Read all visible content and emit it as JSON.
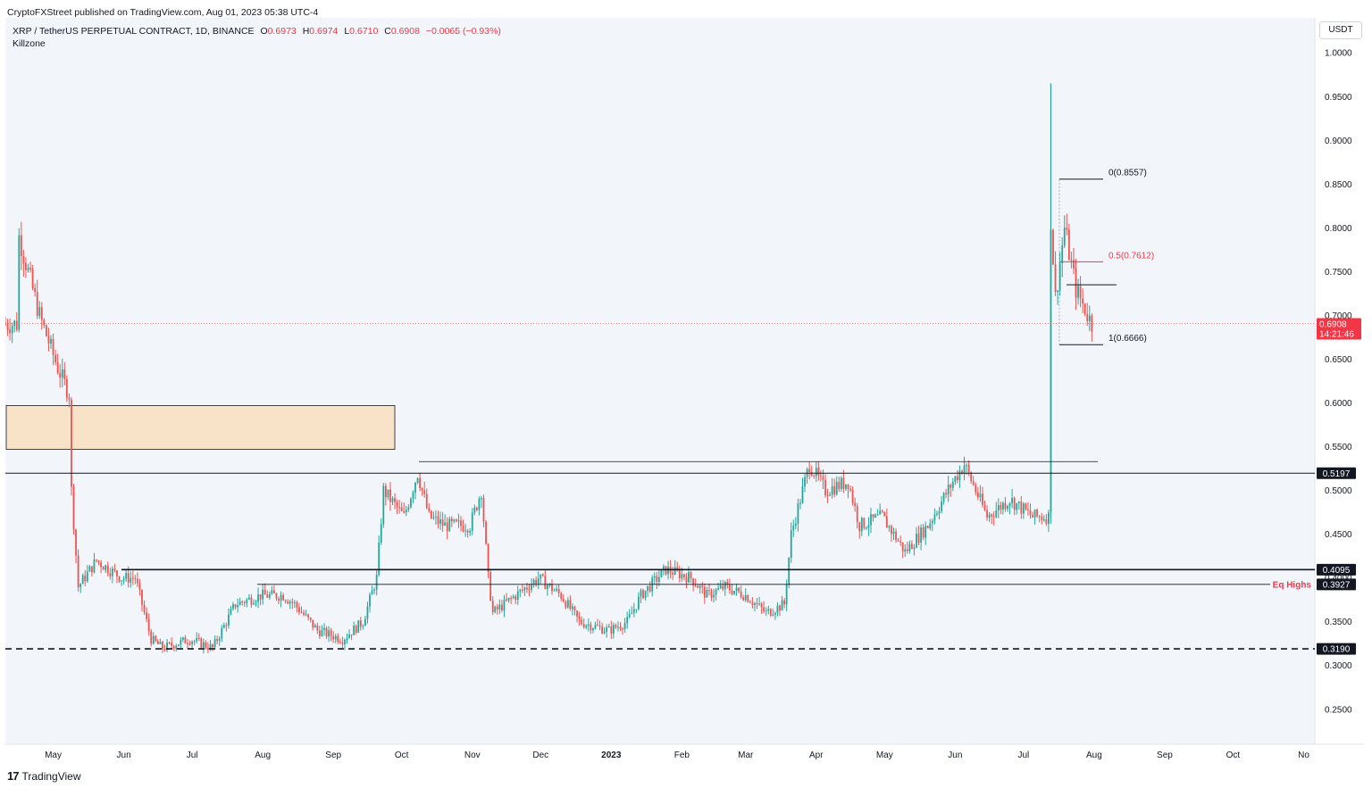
{
  "header": {
    "publisher": "CryptoFXStreet published on TradingView.com, Aug 01, 2023 05:38 UTC-4",
    "symbol": "XRP / TetherUS PERPETUAL CONTRACT, 1D, BINANCE",
    "o_label": "O",
    "o_value": "0.6973",
    "h_label": "H",
    "h_value": "0.6974",
    "l_label": "L",
    "l_value": "0.6710",
    "c_label": "C",
    "c_value": "0.6908",
    "change": "−0.0065 (−0.93%)",
    "indicator": "Killzone",
    "currency": "USDT"
  },
  "footer": {
    "logo_text": "TradingView"
  },
  "colors": {
    "up": "#26a69a",
    "down": "#ef5350",
    "background": "#f2f6fb",
    "zone_fill": "#f8e3c8",
    "accent_red": "#f23645"
  },
  "chart_data": {
    "type": "candlestick",
    "ylim": [
      0.21,
      1.04
    ],
    "y_ticks": [
      "1.0000",
      "0.9500",
      "0.9000",
      "0.8500",
      "0.8000",
      "0.7500",
      "0.7000",
      "0.6500",
      "0.6000",
      "0.5500",
      "0.5000",
      "0.4500",
      "0.4000",
      "0.3500",
      "0.3000",
      "0.2500"
    ],
    "x_labels": [
      "May",
      "Jun",
      "Jul",
      "Aug",
      "Sep",
      "Oct",
      "Nov",
      "Dec",
      "2023",
      "Feb",
      "Mar",
      "Apr",
      "May",
      "Jun",
      "Jul",
      "Aug",
      "Sep",
      "Oct",
      "No"
    ],
    "x_label_bold": "2023",
    "price_anchors": [
      [
        "2022-04-16",
        0.79
      ],
      [
        "2022-04-25",
        0.7
      ],
      [
        "2022-05-03",
        0.64
      ],
      [
        "2022-05-08",
        0.61
      ],
      [
        "2022-05-09",
        0.5
      ],
      [
        "2022-05-12",
        0.39
      ],
      [
        "2022-05-20",
        0.42
      ],
      [
        "2022-05-31",
        0.4
      ],
      [
        "2022-06-06",
        0.4
      ],
      [
        "2022-06-13",
        0.33
      ],
      [
        "2022-06-18",
        0.32
      ],
      [
        "2022-06-30",
        0.33
      ],
      [
        "2022-07-10",
        0.32
      ],
      [
        "2022-07-20",
        0.37
      ],
      [
        "2022-07-31",
        0.38
      ],
      [
        "2022-08-10",
        0.38
      ],
      [
        "2022-08-15",
        0.37
      ],
      [
        "2022-08-25",
        0.34
      ],
      [
        "2022-09-05",
        0.33
      ],
      [
        "2022-09-14",
        0.35
      ],
      [
        "2022-09-20",
        0.4
      ],
      [
        "2022-09-23",
        0.5
      ],
      [
        "2022-10-02",
        0.47
      ],
      [
        "2022-10-08",
        0.52
      ],
      [
        "2022-10-13",
        0.47
      ],
      [
        "2022-10-20",
        0.46
      ],
      [
        "2022-10-31",
        0.46
      ],
      [
        "2022-11-05",
        0.5
      ],
      [
        "2022-11-08",
        0.4
      ],
      [
        "2022-11-10",
        0.36
      ],
      [
        "2022-11-20",
        0.38
      ],
      [
        "2022-11-30",
        0.4
      ],
      [
        "2022-12-10",
        0.38
      ],
      [
        "2022-12-18",
        0.35
      ],
      [
        "2022-12-31",
        0.34
      ],
      [
        "2023-01-08",
        0.35
      ],
      [
        "2023-01-14",
        0.38
      ],
      [
        "2023-01-25",
        0.41
      ],
      [
        "2023-02-05",
        0.4
      ],
      [
        "2023-02-12",
        0.38
      ],
      [
        "2023-02-20",
        0.39
      ],
      [
        "2023-03-01",
        0.38
      ],
      [
        "2023-03-10",
        0.36
      ],
      [
        "2023-03-18",
        0.37
      ],
      [
        "2023-03-21",
        0.45
      ],
      [
        "2023-03-29",
        0.53
      ],
      [
        "2023-04-05",
        0.5
      ],
      [
        "2023-04-15",
        0.51
      ],
      [
        "2023-04-20",
        0.46
      ],
      [
        "2023-04-30",
        0.47
      ],
      [
        "2023-05-10",
        0.43
      ],
      [
        "2023-05-20",
        0.46
      ],
      [
        "2023-05-31",
        0.51
      ],
      [
        "2023-06-05",
        0.53
      ],
      [
        "2023-06-10",
        0.5
      ],
      [
        "2023-06-15",
        0.47
      ],
      [
        "2023-06-25",
        0.49
      ],
      [
        "2023-07-05",
        0.47
      ],
      [
        "2023-07-12",
        0.47
      ],
      [
        "2023-07-13",
        0.81
      ],
      [
        "2023-07-15",
        0.72
      ],
      [
        "2023-07-19",
        0.8
      ],
      [
        "2023-07-24",
        0.73
      ],
      [
        "2023-07-31",
        0.69
      ]
    ],
    "price_marker": {
      "value": "0.6908",
      "countdown": "14:21:46"
    },
    "levels": [
      {
        "value": "0.5197"
      },
      {
        "value": "0.4095"
      },
      {
        "value": "0.3927",
        "annotation": "Eq Highs"
      },
      {
        "value": "0.3190"
      }
    ],
    "fib_levels": [
      {
        "label": "0(0.8557)"
      },
      {
        "label": "0.5(0.7612)"
      },
      {
        "label": "1(0.6666)"
      }
    ],
    "zone": {
      "low": 0.547,
      "high": 0.597
    }
  }
}
